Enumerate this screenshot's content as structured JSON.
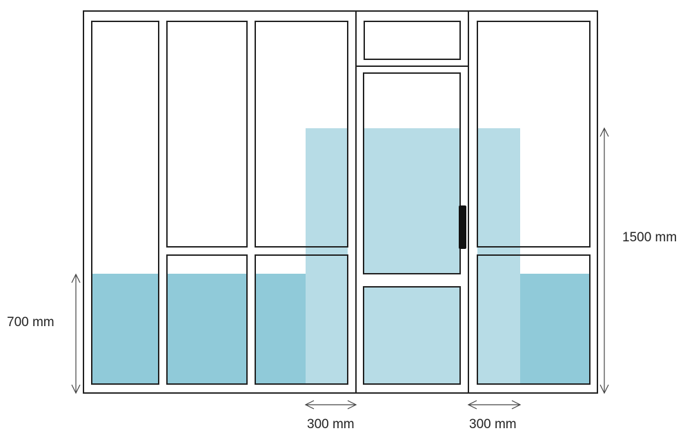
{
  "colors": {
    "frame": "#222222",
    "background": "#ffffff",
    "band_low": "#90cad9",
    "band_high": "#b7dce6",
    "handle": "#111111",
    "dimension": "#444444"
  },
  "dimensions": {
    "left_height": "700 mm",
    "right_height": "1500 mm",
    "bottom_left_width": "300 mm",
    "bottom_right_width": "300 mm"
  },
  "icons": {
    "door_handle": "door-handle-icon",
    "arrows": "double-arrow-icon"
  }
}
